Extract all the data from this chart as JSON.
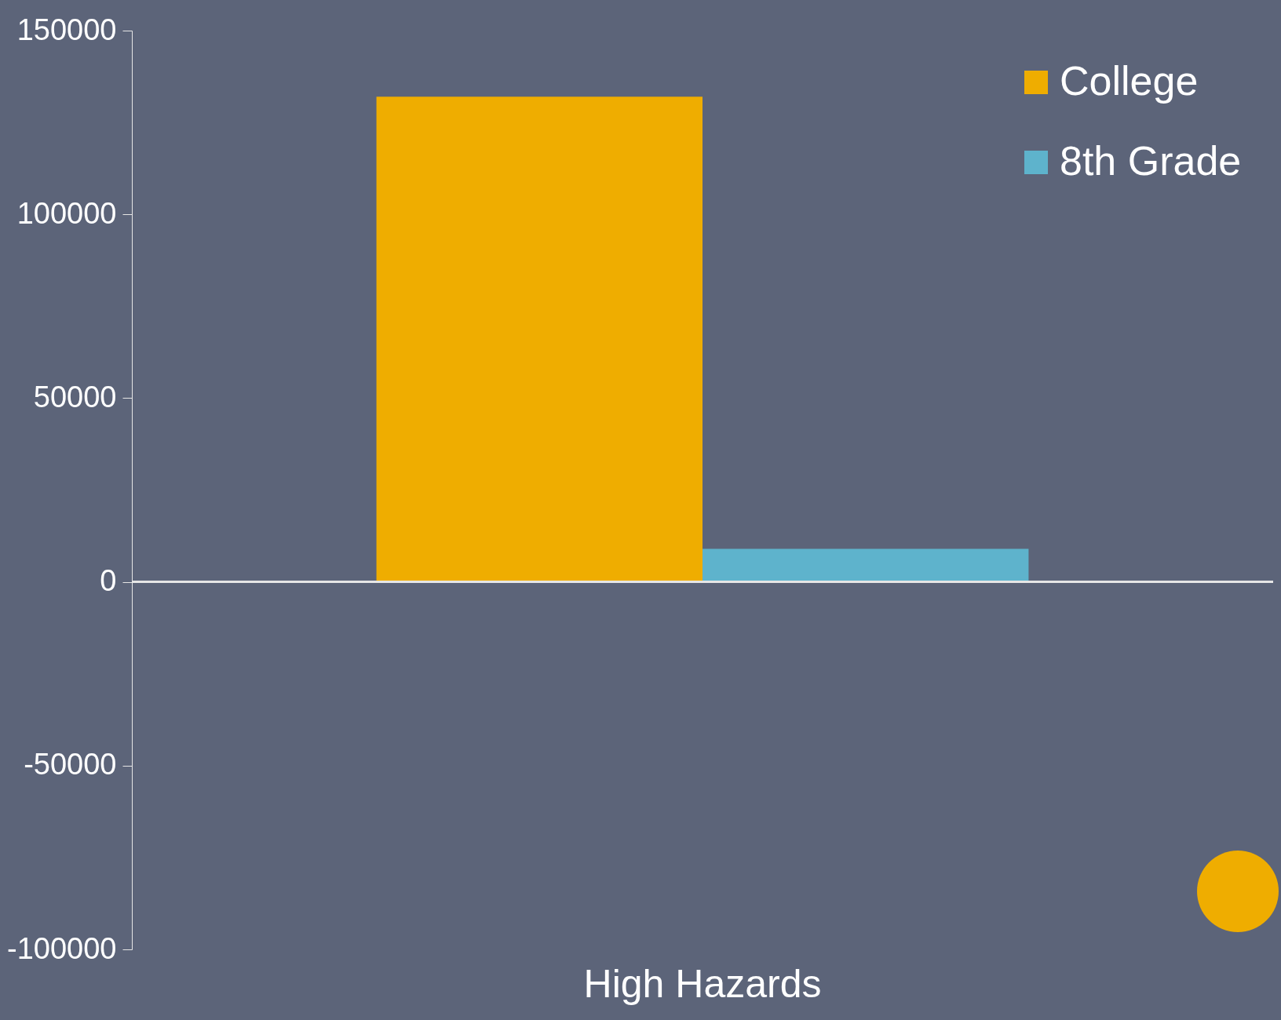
{
  "chart_data": {
    "type": "bar",
    "categories": [
      "High Hazards"
    ],
    "series": [
      {
        "name": "College",
        "color": "#efad00",
        "values": [
          132000
        ]
      },
      {
        "name": "8th Grade",
        "color": "#5eb3cc",
        "values": [
          9000
        ]
      }
    ],
    "ylim": [
      -100000,
      150000
    ],
    "yticks": [
      -100000,
      -50000,
      0,
      50000,
      100000,
      150000
    ],
    "grid": false,
    "legend": "top right",
    "ref_lines": [
      {
        "axis": "y",
        "value": 0,
        "color": "#e6e6e6"
      }
    ]
  }
}
